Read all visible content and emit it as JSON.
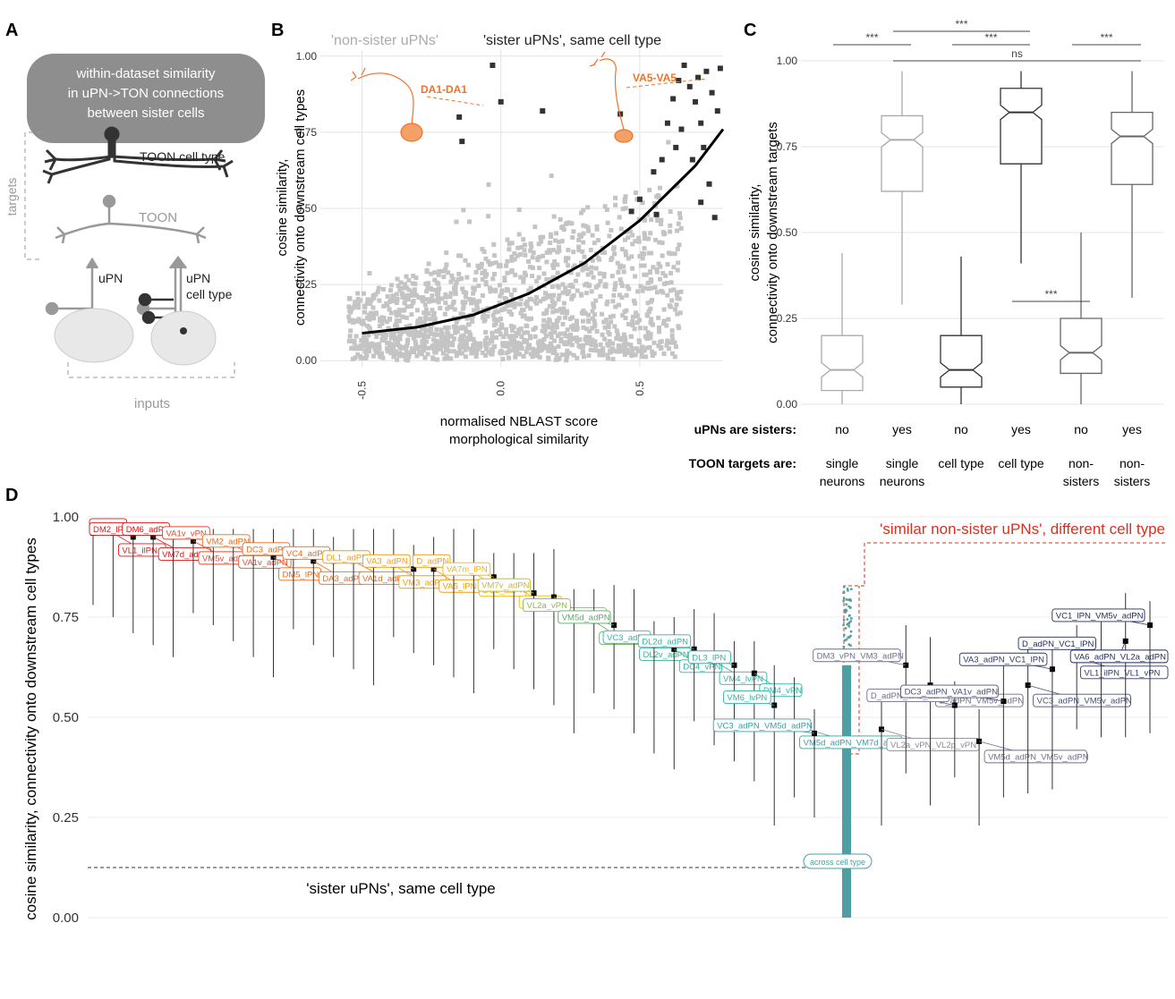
{
  "panel_labels": {
    "a": "A",
    "b": "B",
    "c": "C",
    "d": "D"
  },
  "panel_a": {
    "banner": [
      "within-dataset similarity",
      "in uPN->TON connections",
      "between sister cells"
    ],
    "toon_cell_type": "TOON cell type",
    "toon": "TOON",
    "targets": "targets",
    "upn": "uPN",
    "upn_cell_type": [
      "uPN",
      "cell type"
    ],
    "inputs": "inputs"
  },
  "panel_b": {
    "legend_nonsister": "'non-sister uPNs'",
    "legend_sister": "'sister uPNs', same cell type",
    "ylabel": [
      "cosine similarity,",
      "connectivity onto downstream cell types"
    ],
    "xlabel": [
      "normalised NBLAST score",
      "morphological similarity"
    ],
    "annot_left": "DA1-DA1",
    "annot_right": "VA5-VA5"
  },
  "panel_c": {
    "ylabel": [
      "cosine similarity,",
      "connectivity onto downstream targets"
    ],
    "row1_label": "uPNs are sisters:",
    "row2_label": "TOON targets are:",
    "sisters": [
      "no",
      "yes",
      "no",
      "yes",
      "no",
      "yes"
    ],
    "targets": [
      [
        "single",
        "neurons"
      ],
      [
        "single",
        "neurons"
      ],
      [
        "cell type"
      ],
      [
        "cell type"
      ],
      [
        "non-",
        "sisters"
      ],
      [
        "non-",
        "sisters"
      ]
    ],
    "sig": [
      "***",
      "***",
      "***",
      "ns",
      "***",
      "***"
    ]
  },
  "panel_d": {
    "ylabel": "cosine similarity, connectivity onto downstream cell types",
    "title_red": "'similar non-sister uPNs', different cell type",
    "ref_label": "'sister uPNs', same cell type",
    "across_label": "across cell type"
  },
  "chart_data": [
    {
      "type": "scatter",
      "panel": "B",
      "xlabel": "normalised NBLAST score morphological similarity",
      "ylabel": "cosine similarity, connectivity onto downstream cell types",
      "xlim": [
        -0.65,
        0.8
      ],
      "ylim": [
        -0.02,
        1.02
      ],
      "x_ticks": [
        "-0.5",
        "0.0",
        "0.5"
      ],
      "y_ticks": [
        "0.00",
        "0.25",
        "0.50",
        "0.75",
        "1.00"
      ],
      "series": [
        {
          "name": "'non-sister uPNs'",
          "color": "#c4c4c4",
          "description": "dense cloud, values 0.0-0.6 across x -0.5 to 0.6"
        },
        {
          "name": "'sister uPNs', same cell type",
          "color": "#333333",
          "points": [
            [
              -0.03,
              0.97
            ],
            [
              0.0,
              0.85
            ],
            [
              -0.15,
              0.8
            ],
            [
              -0.14,
              0.72
            ],
            [
              0.15,
              0.82
            ],
            [
              0.43,
              0.81
            ],
            [
              0.47,
              0.49
            ],
            [
              0.5,
              0.53
            ],
            [
              0.56,
              0.48
            ],
            [
              0.55,
              0.62
            ],
            [
              0.6,
              0.78
            ],
            [
              0.62,
              0.86
            ],
            [
              0.64,
              0.92
            ],
            [
              0.66,
              0.97
            ],
            [
              0.68,
              0.9
            ],
            [
              0.7,
              0.85
            ],
            [
              0.72,
              0.78
            ],
            [
              0.74,
              0.95
            ],
            [
              0.76,
              0.88
            ],
            [
              0.78,
              0.82
            ],
            [
              0.73,
              0.7
            ],
            [
              0.69,
              0.66
            ],
            [
              0.75,
              0.58
            ],
            [
              0.72,
              0.52
            ],
            [
              0.77,
              0.47
            ],
            [
              0.65,
              0.76
            ],
            [
              0.71,
              0.93
            ],
            [
              0.79,
              0.96
            ],
            [
              0.63,
              0.7
            ],
            [
              0.58,
              0.66
            ]
          ]
        }
      ],
      "fit_line": {
        "x": [
          -0.5,
          -0.3,
          -0.1,
          0.1,
          0.3,
          0.5,
          0.7,
          0.8
        ],
        "y": [
          0.09,
          0.11,
          0.15,
          0.22,
          0.32,
          0.46,
          0.64,
          0.76
        ]
      },
      "annotations": [
        "DA1-DA1",
        "VA5-VA5"
      ]
    },
    {
      "type": "box",
      "panel": "C",
      "ylabel": "cosine similarity, connectivity onto downstream targets",
      "ylim": [
        0.0,
        1.0
      ],
      "y_ticks": [
        "0.00",
        "0.25",
        "0.50",
        "0.75",
        "1.00"
      ],
      "boxes": [
        {
          "sisters": "no",
          "targets": "single neurons",
          "color": "#aaaaaa",
          "min": 0.0,
          "q1": 0.04,
          "median": 0.1,
          "q3": 0.2,
          "max": 0.44
        },
        {
          "sisters": "yes",
          "targets": "single neurons",
          "color": "#aaaaaa",
          "min": 0.29,
          "q1": 0.62,
          "median": 0.77,
          "q3": 0.84,
          "max": 0.97
        },
        {
          "sisters": "no",
          "targets": "cell type",
          "color": "#333333",
          "min": 0.0,
          "q1": 0.05,
          "median": 0.1,
          "q3": 0.2,
          "max": 0.43
        },
        {
          "sisters": "yes",
          "targets": "cell type",
          "color": "#333333",
          "min": 0.41,
          "q1": 0.7,
          "median": 0.85,
          "q3": 0.92,
          "max": 0.97
        },
        {
          "sisters": "no",
          "targets": "non-sisters",
          "color": "#666666",
          "min": 0.0,
          "q1": 0.09,
          "median": 0.15,
          "q3": 0.25,
          "max": 0.5
        },
        {
          "sisters": "yes",
          "targets": "non-sisters",
          "color": "#666666",
          "min": 0.31,
          "q1": 0.64,
          "median": 0.78,
          "q3": 0.85,
          "max": 0.97
        }
      ],
      "significance": [
        {
          "from": 1,
          "to": 2,
          "label": "***"
        },
        {
          "from": 2,
          "to": 4,
          "label": "***"
        },
        {
          "from": 3,
          "to": 4,
          "label": "***"
        },
        {
          "from": 2,
          "to": 6,
          "label": "ns"
        },
        {
          "from": 5,
          "to": 6,
          "label": "***"
        },
        {
          "from": 4,
          "to": 5,
          "label": "***"
        }
      ]
    },
    {
      "type": "scatter",
      "panel": "D",
      "ylabel": "cosine similarity, connectivity onto downstream cell types",
      "ylim": [
        0.0,
        1.0
      ],
      "y_ticks": [
        "0.00",
        "0.25",
        "0.50",
        "0.75",
        "1.00"
      ],
      "reference_line": {
        "y": 0.13,
        "label": "'sister uPNs', same cell type"
      },
      "points": [
        {
          "label": "V_ilPN",
          "y": 0.96,
          "color": "#d7191c"
        },
        {
          "label": "VL1_ilPN",
          "y": 0.96,
          "color": "#d7191c"
        },
        {
          "label": "DM2_lPN",
          "y": 0.95,
          "color": "#d7191c"
        },
        {
          "label": "VM7d_adPN",
          "y": 0.95,
          "color": "#d7191c"
        },
        {
          "label": "DM6_adPN",
          "y": 0.95,
          "color": "#d7191c"
        },
        {
          "label": "VM5v_adPN",
          "y": 0.94,
          "color": "#e34a33"
        },
        {
          "label": "VA1v_vPN",
          "y": 0.94,
          "color": "#e34a33"
        },
        {
          "label": "VA1v_adPN",
          "y": 0.93,
          "color": "#e34a33"
        },
        {
          "label": "VM2_adPN",
          "y": 0.92,
          "color": "#f16913"
        },
        {
          "label": "DM5_lPN",
          "y": 0.9,
          "color": "#f16913"
        },
        {
          "label": "DC3_adPN",
          "y": 0.9,
          "color": "#f16913"
        },
        {
          "label": "DA3_adPN",
          "y": 0.89,
          "color": "#f16913"
        },
        {
          "label": "VC4_adPN",
          "y": 0.89,
          "color": "#f16913"
        },
        {
          "label": "VA1d_adPN",
          "y": 0.89,
          "color": "#f16913"
        },
        {
          "label": "DL1_adPN",
          "y": 0.88,
          "color": "#f39c12"
        },
        {
          "label": "VM3_adPN",
          "y": 0.88,
          "color": "#f39c12"
        },
        {
          "label": "VA3_adPN",
          "y": 0.87,
          "color": "#f39c12"
        },
        {
          "label": "VA5_lPN",
          "y": 0.87,
          "color": "#f39c12"
        },
        {
          "label": "D_adPN",
          "y": 0.87,
          "color": "#f39c12"
        },
        {
          "label": "DC2_adPN",
          "y": 0.86,
          "color": "#f1b40f"
        },
        {
          "label": "VA7m_lPN",
          "y": 0.85,
          "color": "#f1b40f"
        },
        {
          "label": "DA2_lPN",
          "y": 0.83,
          "color": "#f1b40f"
        },
        {
          "label": "VM7v_adPN",
          "y": 0.81,
          "color": "#c9b82c"
        },
        {
          "label": "VC5_lvPN",
          "y": 0.8,
          "color": "#a7b83d"
        },
        {
          "label": "VL2a_vPN",
          "y": 0.76,
          "color": "#8fb84a"
        },
        {
          "label": "DA1_lPN",
          "y": 0.74,
          "color": "#6fae5a"
        },
        {
          "label": "VM5d_adPN",
          "y": 0.73,
          "color": "#5aaa68"
        },
        {
          "label": "DL2v_adPN",
          "y": 0.7,
          "color": "#3fb09a"
        },
        {
          "label": "VC3_adPN",
          "y": 0.68,
          "color": "#2cb5a6"
        },
        {
          "label": "DC4_vPN",
          "y": 0.67,
          "color": "#2cb5a6"
        },
        {
          "label": "DL2d_adPN",
          "y": 0.67,
          "color": "#2cb5a6"
        },
        {
          "label": "VM4_lvPN",
          "y": 0.64,
          "color": "#2cb5a6"
        },
        {
          "label": "DL3_lPN",
          "y": 0.63,
          "color": "#2cb5a6"
        },
        {
          "label": "DM4_vPN",
          "y": 0.61,
          "color": "#2cb5a6"
        },
        {
          "label": "VM6_lvPN",
          "y": 0.53,
          "color": "#2cb5a6"
        },
        {
          "label": "VM5d_adPN_VM7d_adPN",
          "y": 0.48,
          "color": "#3a9ea5"
        },
        {
          "label": "VC3_adPN_VM5d_adPN",
          "y": 0.46,
          "color": "#3a9ea5"
        },
        {
          "label": "VL2a_vPN_VL2p_vPN",
          "y": 0.47,
          "color": "#8a8a9e"
        },
        {
          "label": "DM3_vPN_VM3_adPN",
          "y": 0.63,
          "color": "#6f6f88"
        },
        {
          "label": "D_adPN_VM5v_adPN",
          "y": 0.58,
          "color": "#6f6f88"
        },
        {
          "label": "D_adPN_VA3_adPN",
          "y": 0.53,
          "color": "#6f6f88"
        },
        {
          "label": "VM5d_adPN_VM5v_adPN",
          "y": 0.44,
          "color": "#6f6f88"
        },
        {
          "label": "DC3_adPN_VA1v_adPN",
          "y": 0.54,
          "color": "#4a5172"
        },
        {
          "label": "VC3_adPN_VM5v_adPN",
          "y": 0.58,
          "color": "#4a5172"
        },
        {
          "label": "VA3_adPN_VC1_lPN",
          "y": 0.62,
          "color": "#2f3a64"
        },
        {
          "label": "VL1_ilPN_VL1_vPN",
          "y": 0.65,
          "color": "#2f3a64"
        },
        {
          "label": "D_adPN_VC1_lPN",
          "y": 0.66,
          "color": "#1f2a55"
        },
        {
          "label": "VA6_adPN_VL2a_adPN",
          "y": 0.69,
          "color": "#1f2a55"
        },
        {
          "label": "VC1_lPN_VM5v_adPN",
          "y": 0.73,
          "color": "#1f2a55"
        }
      ],
      "across_cell_type": {
        "label": "across cell type",
        "y_range": [
          0.0,
          0.83
        ],
        "color": "#4d9fa3"
      }
    }
  ]
}
